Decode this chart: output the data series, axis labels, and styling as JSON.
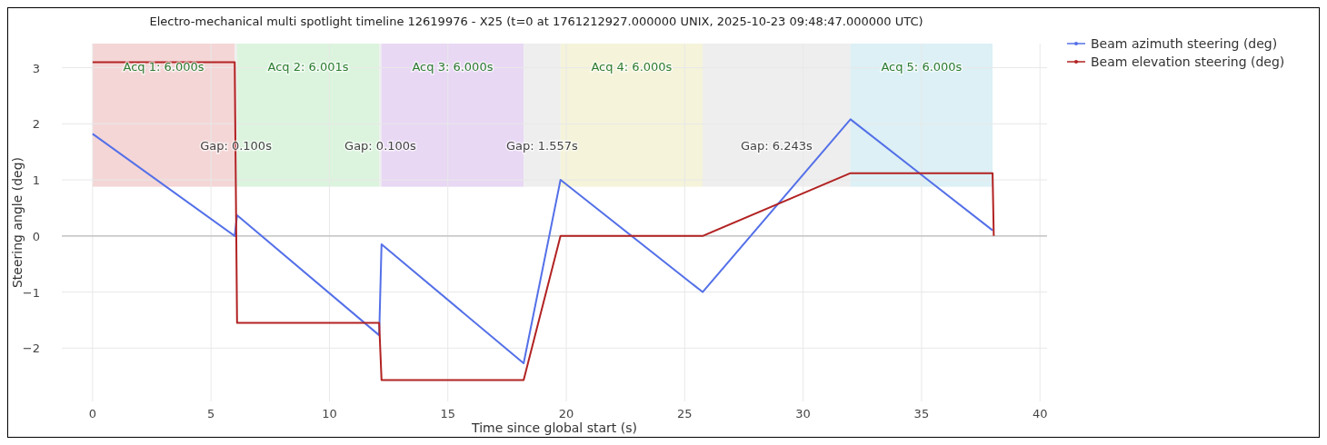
{
  "chart_data": {
    "type": "line",
    "title": "Electro-mechanical multi spotlight timeline 12619976 - X25 (t=0 at 1761212927.000000 UNIX, 2025-10-23 09:48:47.000000 UTC)",
    "xlabel": "Time since global start (s)",
    "ylabel": "Steering angle (deg)",
    "x": [
      0,
      6.0,
      6.1,
      12.1,
      12.2,
      18.2,
      19.757,
      25.757,
      32.0,
      38.0,
      38.05
    ],
    "series": [
      {
        "name": "Beam azimuth steering (deg)",
        "color": "#5470e8",
        "values": [
          1.82,
          0.0,
          0.37,
          -1.77,
          -0.15,
          -2.27,
          1.0,
          -1.0,
          2.08,
          0.1,
          null
        ]
      },
      {
        "name": "Beam elevation steering (deg)",
        "color": "#b22222",
        "values": [
          3.1,
          3.1,
          -1.55,
          -1.55,
          -2.57,
          -2.57,
          0,
          0,
          1.12,
          1.12,
          0
        ]
      }
    ],
    "xlim": [
      -1.3,
      40.3
    ],
    "ylim": [
      -2.95,
      3.43
    ],
    "xticks": [
      0,
      5,
      10,
      15,
      20,
      25,
      30,
      35,
      40
    ],
    "yticks": [
      {
        "value": -2,
        "label": "−2"
      },
      {
        "value": -1,
        "label": "−1"
      },
      0,
      1,
      2,
      3
    ],
    "bands": [
      {
        "axis": "x",
        "from": 0,
        "to": 6.0,
        "label": "Acq 1: 6.000s",
        "color": "#f4d6d6"
      },
      {
        "axis": "x",
        "from": 6.0,
        "to": 6.1,
        "label": "Gap: 0.100s",
        "color": "#eeeeee"
      },
      {
        "axis": "x",
        "from": 6.1,
        "to": 12.1,
        "label": "Acq 2: 6.001s",
        "color": "#dcf4de"
      },
      {
        "axis": "x",
        "from": 12.1,
        "to": 12.2,
        "label": "Gap: 0.100s",
        "color": "#eeeeee"
      },
      {
        "axis": "x",
        "from": 12.2,
        "to": 18.2,
        "label": "Acq 3: 6.000s",
        "color": "#e8d8f4"
      },
      {
        "axis": "x",
        "from": 18.2,
        "to": 19.757,
        "label": "Gap: 1.557s",
        "color": "#eeeeee"
      },
      {
        "axis": "x",
        "from": 19.757,
        "to": 25.757,
        "label": "Acq 4: 6.000s",
        "color": "#f5f3da"
      },
      {
        "axis": "x",
        "from": 25.757,
        "to": 32.0,
        "label": "Gap: 6.243s",
        "color": "#eeeeee"
      },
      {
        "axis": "x",
        "from": 32.0,
        "to": 38.0,
        "label": "Acq 5: 6.000s",
        "color": "#dcf0f5"
      }
    ],
    "ref_lines": [
      {
        "axis": "y",
        "value": 0,
        "color": "#bbbbbb"
      }
    ],
    "grid": true,
    "legend": "top right",
    "line_style": "solid"
  }
}
